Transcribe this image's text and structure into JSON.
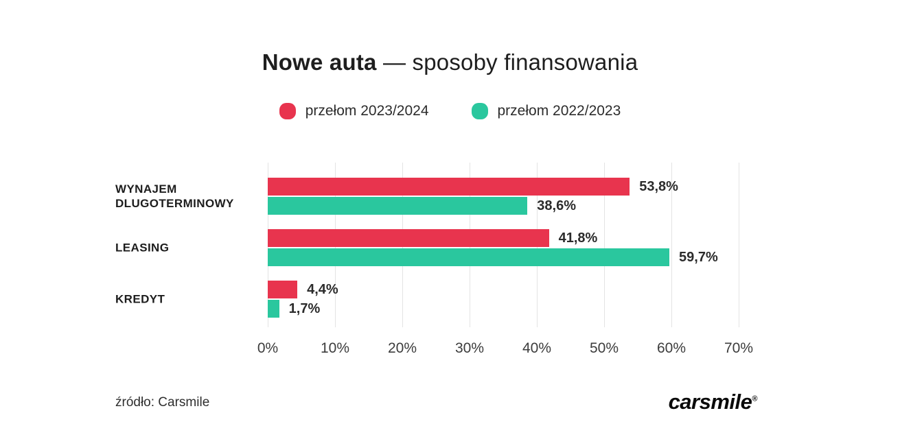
{
  "title": {
    "bold": "Nowe auta",
    "rest": " — sposoby finansowania"
  },
  "legend": {
    "items": [
      {
        "label": "przełom 2023/2024",
        "color": "#e8344e"
      },
      {
        "label": "przełom 2022/2023",
        "color": "#2ac79e"
      }
    ]
  },
  "chart_data": {
    "type": "bar",
    "orientation": "horizontal",
    "title": "Nowe auta — sposoby finansowania",
    "categories": [
      "WYNAJEM\nDLUGOTERMINOWY",
      "LEASING",
      "KREDYT"
    ],
    "series": [
      {
        "name": "przełom 2023/2024",
        "color": "#e8344e",
        "values": [
          53.8,
          41.8,
          4.4
        ],
        "value_labels": [
          "53,8%",
          "41,8%",
          "4,4%"
        ]
      },
      {
        "name": "przełom 2022/2023",
        "color": "#2ac79e",
        "values": [
          38.6,
          59.7,
          1.7
        ],
        "value_labels": [
          "38,6%",
          "59,7%",
          "1,7%"
        ]
      }
    ],
    "xlim": [
      0,
      70
    ],
    "ticks": [
      "0%",
      "10%",
      "20%",
      "30%",
      "40%",
      "50%",
      "60%",
      "70%"
    ],
    "grid": true,
    "gridline_color": "#e3e3e3",
    "legend_position": "top"
  },
  "footer": {
    "source": "źródło: Carsmile",
    "logo": "carsmile",
    "logo_reg": "®"
  }
}
